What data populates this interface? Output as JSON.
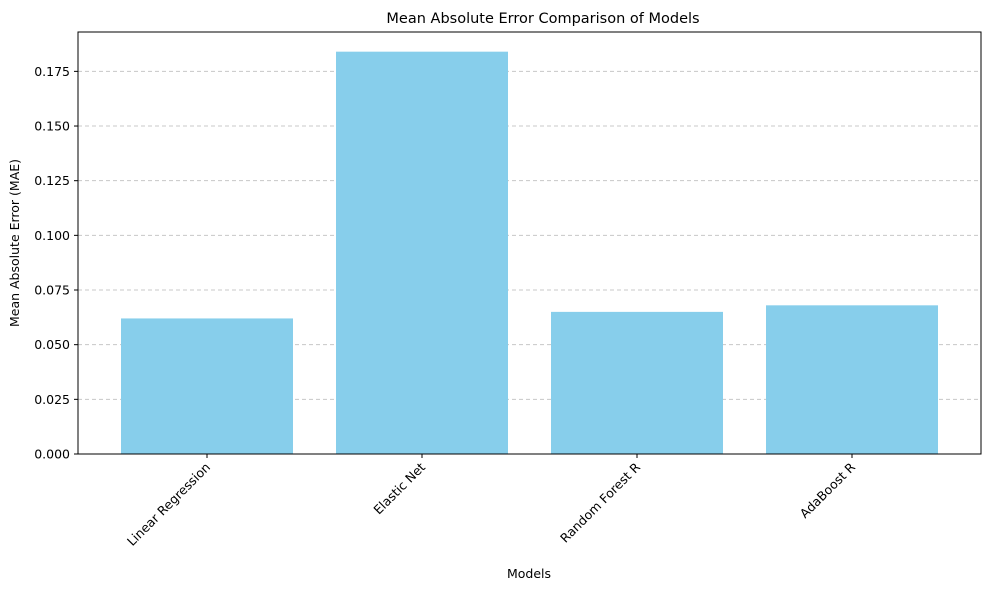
{
  "chart_data": {
    "type": "bar",
    "title": "Mean Absolute Error Comparison of Models",
    "xlabel": "Models",
    "ylabel": "Mean Absolute Error (MAE)",
    "categories": [
      "Linear Regression",
      "Elastic Net",
      "Random Forest R",
      "AdaBoost R"
    ],
    "values": [
      0.062,
      0.184,
      0.065,
      0.068
    ],
    "ylim": [
      0,
      0.193
    ],
    "yticks": [
      0.0,
      0.025,
      0.05,
      0.075,
      0.1,
      0.125,
      0.15,
      0.175
    ],
    "ytick_labels": [
      "0.000",
      "0.025",
      "0.050",
      "0.075",
      "0.100",
      "0.125",
      "0.150",
      "0.175"
    ],
    "grid": {
      "axis": "y",
      "style": "dashed"
    },
    "bar_color": "#87ceeb",
    "grid_color": "#c8c8c8"
  }
}
